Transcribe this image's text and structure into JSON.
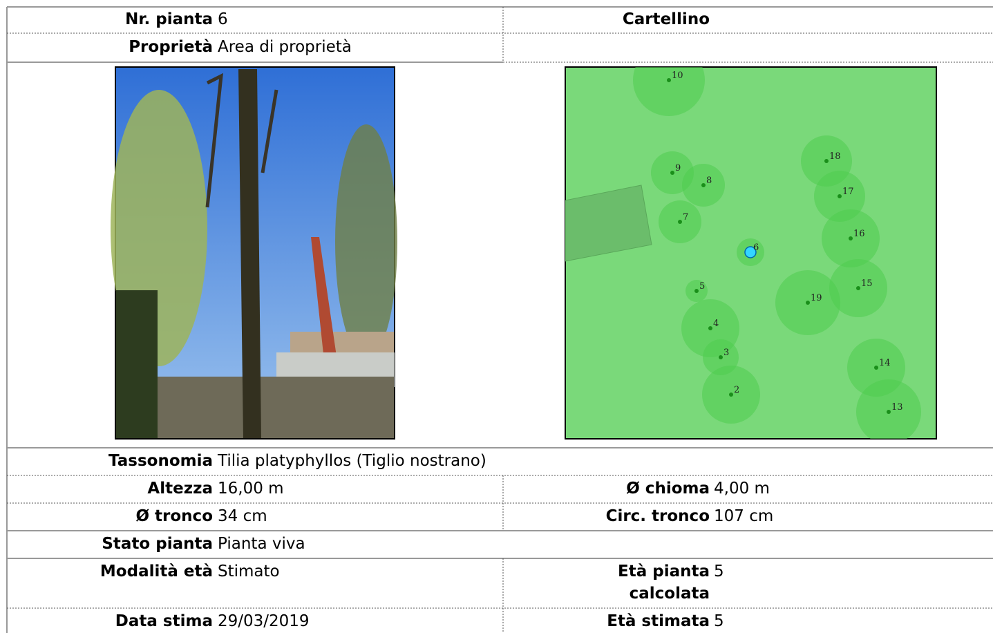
{
  "rows": [
    {
      "label": "Nr. pianta",
      "value": "6",
      "label2": "Cartellino"
    },
    {
      "label": "Proprietà",
      "value": "Area di proprietà"
    },
    {
      "label": "Tassonomia",
      "value": "Tilia platyphyllos (Tiglio nostrano)"
    },
    {
      "label": "Altezza",
      "value": "16,00 m",
      "label2": "Ø chioma",
      "value2": "4,00 m"
    },
    {
      "label": "Ø tronco",
      "value": "34 cm",
      "label2": "Circ. tronco",
      "value2": "107 cm"
    },
    {
      "label": "Stato pianta",
      "value": "Pianta viva"
    },
    {
      "label": "Modalità età",
      "value": "Stimato",
      "label2": "Età pianta calcolata",
      "value2": "5"
    },
    {
      "label": "Data stima",
      "value": "29/03/2019",
      "label2": "Età stimata",
      "value2": "5"
    }
  ],
  "map": {
    "tree_labels": [
      "10",
      "18",
      "9",
      "8",
      "17",
      "7",
      "16",
      "6",
      "5",
      "15",
      "19",
      "4",
      "3",
      "14",
      "2",
      "13"
    ]
  }
}
